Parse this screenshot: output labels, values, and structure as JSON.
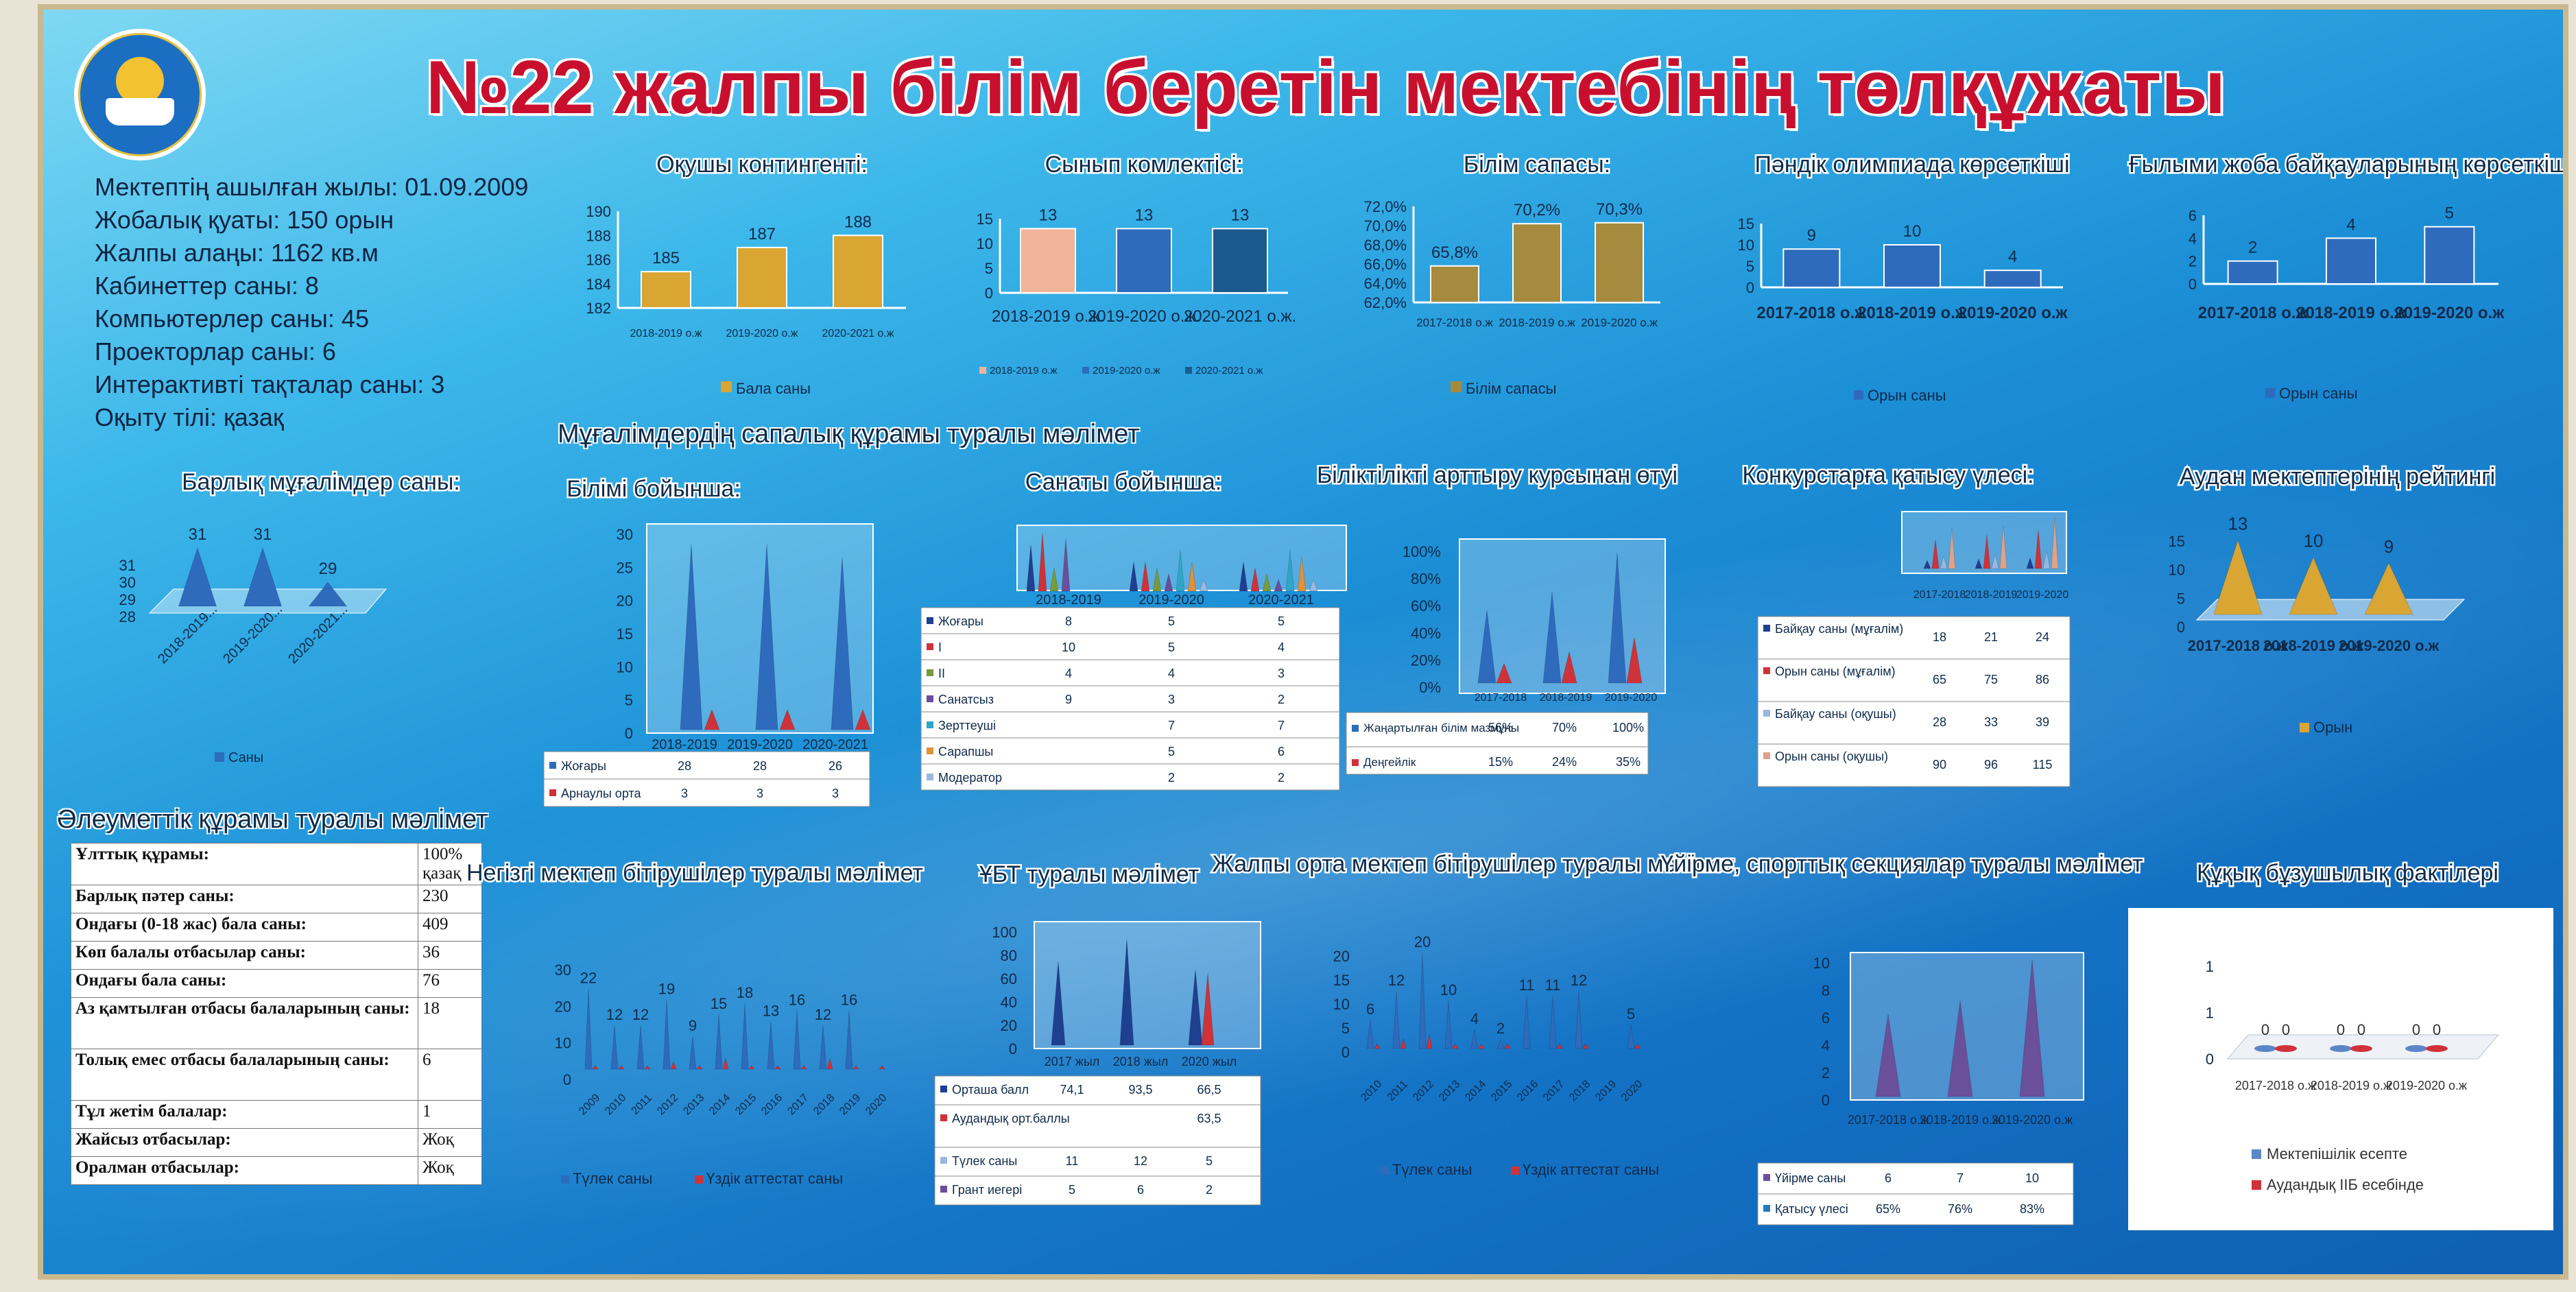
{
  "title": "№22 жалпы білім беретін мектебінің төлқұжаты",
  "info": [
    "Мектептің ашылған жылы: 01.09.2009",
    "Жобалық қуаты: 150 орын",
    "Жалпы алаңы: 1162 кв.м",
    "Кабинеттер саны: 8",
    "Компьютерлер саны: 45",
    "Проекторлар саны: 6",
    "Интерактивті тақталар саны: 3",
    "Оқыту тілі: қазақ"
  ],
  "headers": {
    "teachers_quality": "Мұғалімдердің сапалық құрамы туралы мәлімет",
    "social": "Әлеуметтік құрамы туралы мәлімет"
  },
  "social_table": [
    [
      "Ұлттық құрамы:",
      "100% қазақ"
    ],
    [
      "Барлық пәтер саны:",
      "230"
    ],
    [
      "Ондағы (0-18 жас) бала саны:",
      "409"
    ],
    [
      "Көп балалы отбасылар саны:",
      "36"
    ],
    [
      "Ондағы бала саны:",
      "76"
    ],
    [
      "Аз қамтылған отбасы балаларының саны:",
      "18"
    ],
    [
      "Толық емес отбасы балаларының саны:",
      "6"
    ],
    [
      "Тұл жетім балалар:",
      "1"
    ],
    [
      "Жайсыз отбасылар:",
      "Жоқ"
    ],
    [
      "Оралман отбасылар:",
      "Жоқ"
    ]
  ],
  "colors": {
    "gold": "#d9a533",
    "olive": "#a68a3e",
    "blue": "#2e6bbd",
    "red": "#d0323a",
    "navy": "#1f3f8f",
    "peach": "#f0b49a",
    "purple": "#6a4f9b"
  },
  "chart_data": [
    {
      "id": "contingent",
      "type": "bar",
      "title": "Оқушы контингенті:",
      "categories": [
        "2018-2019 о.ж",
        "2019-2020 о.ж",
        "2020-2021 о.ж"
      ],
      "series": [
        {
          "name": "Бала саны",
          "values": [
            185,
            187,
            188
          ]
        }
      ],
      "ylim": [
        182,
        190
      ],
      "yticks": [
        "190",
        "188",
        "186",
        "184",
        "182"
      ]
    },
    {
      "id": "classes",
      "type": "bar",
      "title": "Сынып комлектісі:",
      "categories": [
        "2018-2019 о.ж.",
        "2019-2020 о.ж.",
        "2020-2021 о.ж."
      ],
      "values": [
        13,
        13,
        13
      ],
      "legend": [
        "2018-2019 о.ж",
        "2019-2020 о.ж",
        "2020-2021 о.ж"
      ],
      "ylim": [
        0,
        15
      ],
      "yticks": [
        "15",
        "10",
        "5",
        "0"
      ]
    },
    {
      "id": "quality",
      "type": "bar",
      "title": "Білім сапасы:",
      "categories": [
        "2017-2018 о.ж",
        "2018-2019 о.ж",
        "2019-2020 о.ж"
      ],
      "series": [
        {
          "name": "Білім сапасы",
          "values": [
            65.8,
            70.2,
            70.3
          ]
        }
      ],
      "value_labels": [
        "65,8%",
        "70,2%",
        "70,3%"
      ],
      "ylim": [
        62,
        72
      ],
      "yticks": [
        "72,0%",
        "70,0%",
        "68,0%",
        "66,0%",
        "64,0%",
        "62,0%"
      ]
    },
    {
      "id": "olympiad",
      "type": "bar",
      "title": "Пәндік олимпиада көрсеткіші",
      "categories": [
        "2017-2018 о.ж",
        "2018-2019 о.ж",
        "2019-2020 о.ж"
      ],
      "series": [
        {
          "name": "Орын саны",
          "values": [
            9,
            10,
            4
          ]
        }
      ],
      "ylim": [
        0,
        15
      ],
      "yticks": [
        "15",
        "10",
        "5",
        "0"
      ]
    },
    {
      "id": "science",
      "type": "bar",
      "title": "Ғылыми жоба байқауларының көрсеткіші",
      "categories": [
        "2017-2018 о.ж",
        "2018-2019 о.ж",
        "2019-2020 о.ж"
      ],
      "series": [
        {
          "name": "Орын саны",
          "values": [
            2,
            4,
            5
          ]
        }
      ],
      "ylim": [
        0,
        6
      ],
      "yticks": [
        "6",
        "4",
        "2",
        "0"
      ]
    },
    {
      "id": "teachers",
      "type": "bar",
      "title": "Барлық мұғалімдер саны:",
      "categories": [
        "2018-2019...",
        "2019-2020...",
        "2020-2021..."
      ],
      "series": [
        {
          "name": "Саны",
          "values": [
            31,
            31,
            29
          ]
        }
      ],
      "yticks": [
        "31",
        "30",
        "29",
        "28"
      ]
    },
    {
      "id": "education",
      "type": "bar",
      "title": "Білімі бойынша:",
      "categories": [
        "2018-2019",
        "2019-2020",
        "2020-2021"
      ],
      "series": [
        {
          "name": "Жоғары",
          "values": [
            28,
            28,
            26
          ]
        },
        {
          "name": "Арнаулы орта",
          "values": [
            3,
            3,
            3
          ]
        }
      ],
      "ylim": [
        0,
        30
      ],
      "yticks": [
        "30",
        "25",
        "20",
        "15",
        "10",
        "5",
        "0"
      ]
    },
    {
      "id": "category",
      "type": "bar",
      "title": "Санаты бойынша:",
      "categories": [
        "2018-2019",
        "2019-2020",
        "2020-2021"
      ],
      "series": [
        {
          "name": "Жоғары",
          "values": [
            8,
            5,
            5
          ]
        },
        {
          "name": "I",
          "values": [
            10,
            5,
            4
          ]
        },
        {
          "name": "II",
          "values": [
            4,
            4,
            3
          ]
        },
        {
          "name": "Санатсыз",
          "values": [
            9,
            3,
            2
          ]
        },
        {
          "name": "Зерттеуші",
          "values": [
            null,
            7,
            7
          ]
        },
        {
          "name": "Сарапшы",
          "values": [
            null,
            5,
            6
          ]
        },
        {
          "name": "Модератор",
          "values": [
            null,
            2,
            2
          ]
        }
      ]
    },
    {
      "id": "courses",
      "type": "bar",
      "title": "Біліктілікті арттыру курсынан өтуі",
      "categories": [
        "2017-2018",
        "2018-2019",
        "2019-2020"
      ],
      "series": [
        {
          "name": "Жаңартылған білім мазмұны",
          "values": [
            56,
            70,
            100
          ],
          "labels": [
            "56%",
            "70%",
            "100%"
          ]
        },
        {
          "name": "Деңгейлік",
          "values": [
            15,
            24,
            35
          ],
          "labels": [
            "15%",
            "24%",
            "35%"
          ]
        }
      ],
      "ylim": [
        0,
        100
      ],
      "yticks": [
        "100%",
        "80%",
        "60%",
        "40%",
        "20%",
        "0%"
      ]
    },
    {
      "id": "contests",
      "type": "bar",
      "title": "Конкурстарға қатысу үлесі:",
      "categories": [
        "2017-2018",
        "2018-2019",
        "2019-2020"
      ],
      "series": [
        {
          "name": "Байқау саны (мұғалім)",
          "values": [
            18,
            21,
            24
          ]
        },
        {
          "name": "Орын саны (мұғалім)",
          "values": [
            65,
            75,
            86
          ]
        },
        {
          "name": "Байқау саны (оқушы)",
          "values": [
            28,
            33,
            39
          ]
        },
        {
          "name": "Орын саны (оқушы)",
          "values": [
            90,
            96,
            115
          ]
        }
      ]
    },
    {
      "id": "rating",
      "type": "bar",
      "title": "Аудан мектептерінің рейтингі",
      "categories": [
        "2017-2018 о.ж",
        "2018-2019 о.ж",
        "2019-2020 о.ж"
      ],
      "series": [
        {
          "name": "Орын",
          "values": [
            13,
            10,
            9
          ]
        }
      ],
      "ylim": [
        0,
        15
      ],
      "yticks": [
        "15",
        "10",
        "5",
        "0"
      ]
    },
    {
      "id": "basic_grads",
      "type": "bar",
      "title": "Негізгі мектеп бітірушілер туралы мәлімет",
      "categories": [
        "2009",
        "2010",
        "2011",
        "2012",
        "2013",
        "2014",
        "2015",
        "2016",
        "2017",
        "2018",
        "2019",
        "2020"
      ],
      "series": [
        {
          "name": "Түлек саны",
          "values": [
            22,
            12,
            12,
            19,
            9,
            15,
            18,
            13,
            16,
            12,
            16,
            null
          ]
        },
        {
          "name": "Үздік аттестат саны",
          "values": [
            1,
            1,
            1,
            2,
            1,
            3,
            1,
            1,
            1,
            3,
            1,
            1
          ]
        }
      ],
      "ylim": [
        0,
        30
      ],
      "yticks": [
        "30",
        "20",
        "10",
        "0"
      ]
    },
    {
      "id": "ent",
      "type": "bar",
      "title": "ҰБТ туралы мәлімет",
      "categories": [
        "2017 жыл",
        "2018 жыл",
        "2020 жыл"
      ],
      "series": [
        {
          "name": "Орташа балл",
          "values": [
            74.1,
            93.5,
            66.5
          ],
          "labels": [
            "74,1",
            "93,5",
            "66,5"
          ]
        },
        {
          "name": "Аудандық орт.баллы",
          "values": [
            null,
            null,
            63.5
          ],
          "labels": [
            "",
            "",
            "63,5"
          ]
        },
        {
          "name": "Түлек саны",
          "values": [
            11,
            12,
            5
          ],
          "labels": [
            "11",
            "12",
            "5"
          ]
        },
        {
          "name": "Грант иегері",
          "values": [
            5,
            6,
            2
          ],
          "labels": [
            "5",
            "6",
            "2"
          ]
        }
      ],
      "ylim": [
        0,
        100
      ],
      "yticks": [
        "100",
        "80",
        "60",
        "40",
        "20",
        "0"
      ]
    },
    {
      "id": "general_grads",
      "type": "bar",
      "title": "Жалпы орта мектеп бітірушілер туралы мәлімет",
      "categories": [
        "2010",
        "2011",
        "2012",
        "2013",
        "2014",
        "2015",
        "2016",
        "2017",
        "2018",
        "2019",
        "2020"
      ],
      "series": [
        {
          "name": "Түлек саны",
          "values": [
            6,
            12,
            20,
            10,
            4,
            2,
            11,
            11,
            12,
            null,
            5
          ]
        },
        {
          "name": "Үздік аттестат саны",
          "values": [
            1,
            2,
            3,
            1,
            1,
            1,
            0,
            1,
            1,
            0,
            1
          ]
        }
      ],
      "ylim": [
        0,
        20
      ],
      "yticks": [
        "20",
        "15",
        "10",
        "5",
        "0"
      ]
    },
    {
      "id": "clubs",
      "type": "bar",
      "title": "Үйірме, спорттық секциялар туралы мәлімет",
      "categories": [
        "2017-2018 о.ж",
        "2018-2019 о.ж",
        "2019-2020 о.ж"
      ],
      "series": [
        {
          "name": "Үйірме саны",
          "values": [
            6,
            7,
            10
          ]
        },
        {
          "name": "Қатысу үлесі",
          "values": [
            65,
            76,
            83
          ],
          "labels": [
            "65%",
            "76%",
            "83%"
          ]
        }
      ],
      "ylim": [
        0,
        10
      ],
      "yticks": [
        "10",
        "8",
        "6",
        "4",
        "2",
        "0"
      ]
    },
    {
      "id": "offenses",
      "type": "bar",
      "title": "Құқық бұзушылық фактілері",
      "categories": [
        "2017-2018 о.ж",
        "2018-2019 о.ж",
        "2019-2020 о.ж"
      ],
      "series": [
        {
          "name": "Мектепішілік есепте",
          "values": [
            0,
            0,
            0
          ]
        },
        {
          "name": "Аудандық ІІБ есебінде",
          "values": [
            0,
            0,
            0
          ]
        }
      ],
      "yticks": [
        "1",
        "1",
        "0"
      ]
    }
  ]
}
